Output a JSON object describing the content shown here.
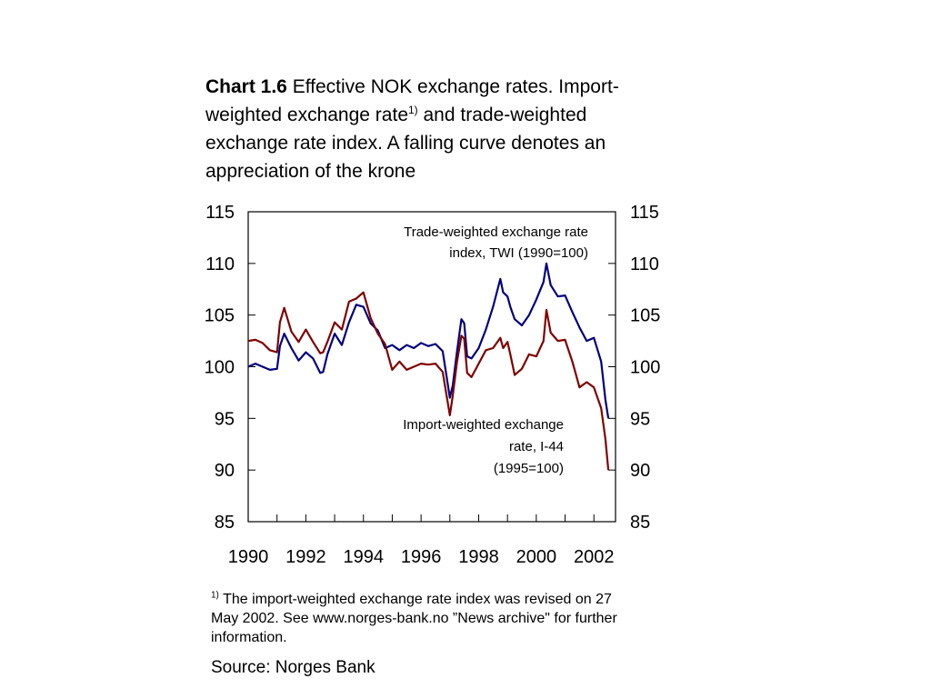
{
  "title": {
    "lead": "Chart 1.6",
    "text_before_sup": " Effective NOK exchange rates. Import-weighted exchange rate",
    "sup": "1)",
    "text_after_sup": " and trade-weighted exchange rate index. A falling curve denotes an appreciation of the krone"
  },
  "footnote": {
    "marker": "1)",
    "text": " The import-weighted exchange rate index was revised on 27 May 2002. See www.norges-bank.no ”News archive\" for further information."
  },
  "source": "Source: Norges Bank",
  "chart_data": {
    "type": "line",
    "xlim": [
      1990,
      2002.75
    ],
    "ylim": [
      85,
      115
    ],
    "y_ticks": [
      85,
      90,
      95,
      100,
      105,
      110,
      115
    ],
    "x_tick_labels": [
      1990,
      1992,
      1994,
      1996,
      1998,
      2000,
      2002
    ],
    "y_axes": [
      "left",
      "right"
    ],
    "grid": false,
    "annotations": [
      {
        "line1": "Trade-weighted exchange rate",
        "line2": "index, TWI (1990=100)",
        "series": "twi"
      },
      {
        "line1": "Import-weighted exchange",
        "line2": "rate, I-44",
        "line3": "(1995=100)",
        "series": "i44"
      }
    ],
    "series": [
      {
        "id": "twi",
        "color": "#000080",
        "x": [
          1990.0,
          1990.25,
          1990.5,
          1990.75,
          1991.0,
          1991.1,
          1991.25,
          1991.5,
          1991.75,
          1992.0,
          1992.25,
          1992.5,
          1992.6,
          1992.75,
          1993.0,
          1993.25,
          1993.5,
          1993.75,
          1994.0,
          1994.25,
          1994.5,
          1994.75,
          1995.0,
          1995.25,
          1995.5,
          1995.75,
          1996.0,
          1996.25,
          1996.5,
          1996.75,
          1997.0,
          1997.1,
          1997.25,
          1997.4,
          1997.5,
          1997.6,
          1997.75,
          1998.0,
          1998.25,
          1998.5,
          1998.75,
          1998.85,
          1999.0,
          1999.1,
          1999.25,
          1999.5,
          1999.75,
          2000.0,
          2000.25,
          2000.35,
          2000.5,
          2000.75,
          2001.0,
          2001.25,
          2001.5,
          2001.75,
          2002.0,
          2002.25,
          2002.4,
          2002.5
        ],
        "values": [
          100.0,
          100.3,
          100.0,
          99.7,
          99.8,
          102.0,
          103.2,
          101.8,
          100.6,
          101.4,
          100.8,
          99.4,
          99.5,
          101.2,
          103.2,
          102.1,
          104.3,
          106.0,
          105.8,
          104.2,
          103.5,
          101.8,
          102.1,
          101.6,
          102.1,
          101.8,
          102.3,
          102.0,
          102.2,
          101.5,
          97.0,
          98.2,
          101.5,
          104.6,
          104.2,
          101.0,
          100.8,
          101.8,
          103.6,
          105.8,
          108.5,
          107.2,
          106.8,
          105.8,
          104.6,
          104.0,
          105.0,
          106.5,
          108.2,
          110.0,
          107.9,
          106.8,
          106.9,
          105.3,
          103.8,
          102.5,
          102.8,
          100.5,
          96.8,
          95.0
        ]
      },
      {
        "id": "i44",
        "color": "#800000",
        "x": [
          1990.0,
          1990.25,
          1990.5,
          1990.75,
          1991.0,
          1991.1,
          1991.25,
          1991.5,
          1991.75,
          1992.0,
          1992.25,
          1992.5,
          1992.6,
          1992.75,
          1993.0,
          1993.25,
          1993.5,
          1993.75,
          1994.0,
          1994.25,
          1994.5,
          1994.75,
          1995.0,
          1995.25,
          1995.5,
          1995.75,
          1996.0,
          1996.25,
          1996.5,
          1996.75,
          1997.0,
          1997.1,
          1997.25,
          1997.4,
          1997.5,
          1997.6,
          1997.75,
          1998.0,
          1998.25,
          1998.5,
          1998.75,
          1998.85,
          1999.0,
          1999.1,
          1999.25,
          1999.5,
          1999.75,
          2000.0,
          2000.25,
          2000.35,
          2000.5,
          2000.75,
          2001.0,
          2001.25,
          2001.5,
          2001.75,
          2002.0,
          2002.25,
          2002.4,
          2002.5
        ],
        "values": [
          102.5,
          102.6,
          102.3,
          101.6,
          101.4,
          104.3,
          105.7,
          103.4,
          102.4,
          103.6,
          102.4,
          101.3,
          101.4,
          102.4,
          104.3,
          103.6,
          106.3,
          106.6,
          107.2,
          104.7,
          103.2,
          102.2,
          99.7,
          100.5,
          99.7,
          100.0,
          100.3,
          100.2,
          100.3,
          99.5,
          95.3,
          97.2,
          100.5,
          103.0,
          102.7,
          99.4,
          99.0,
          100.3,
          101.6,
          101.8,
          102.8,
          101.8,
          102.4,
          101.2,
          99.2,
          99.8,
          101.2,
          101.0,
          102.5,
          105.5,
          103.3,
          102.5,
          102.6,
          100.5,
          98.0,
          98.5,
          98.0,
          96.0,
          93.0,
          90.0
        ]
      }
    ]
  }
}
